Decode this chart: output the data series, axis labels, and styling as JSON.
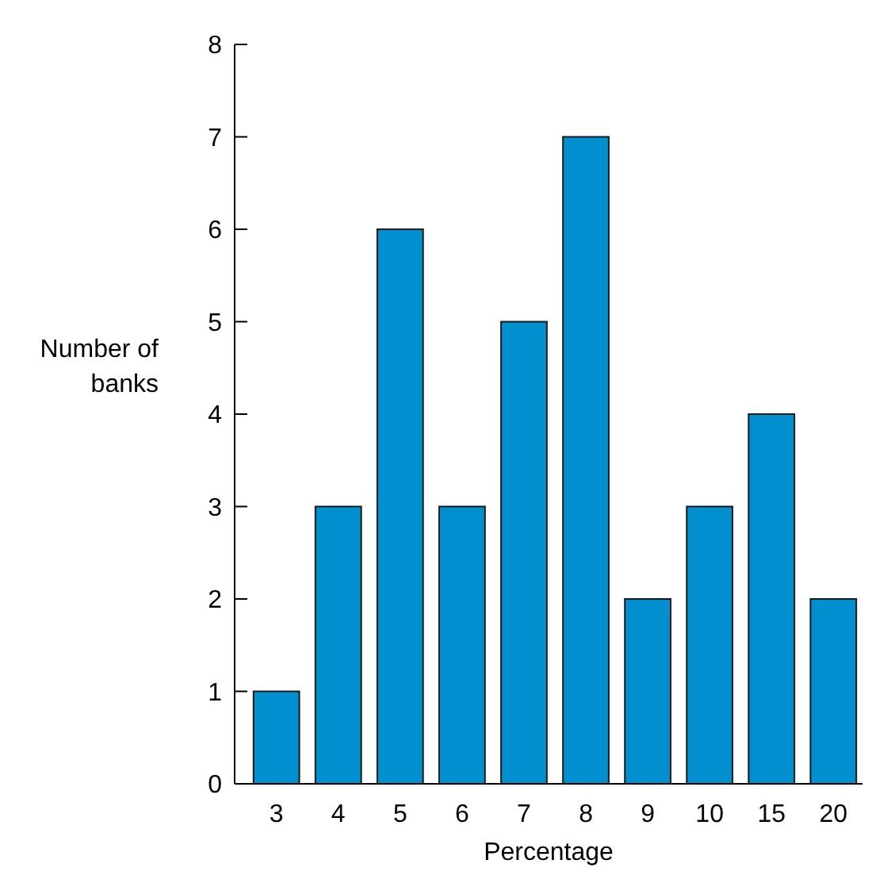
{
  "chart_data": {
    "type": "bar",
    "xlabel": "Percentage",
    "ylabel": "Number of banks",
    "categories": [
      "3",
      "4",
      "5",
      "6",
      "7",
      "8",
      "9",
      "10",
      "15",
      "20"
    ],
    "values": [
      1,
      3,
      6,
      3,
      5,
      7,
      2,
      3,
      4,
      2
    ],
    "color": "#0090d0",
    "ylim": [
      0,
      8
    ],
    "yticks": [
      0,
      1,
      2,
      3,
      4,
      5,
      6,
      7,
      8
    ],
    "grid": false
  }
}
